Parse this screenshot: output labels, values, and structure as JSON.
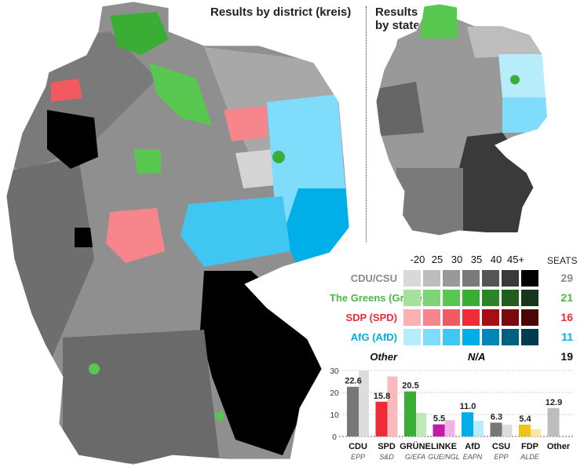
{
  "titles": {
    "district": "Results by district (kreis)",
    "state_line1": "Results",
    "state_line2": "by state"
  },
  "legend": {
    "bins": [
      "-20",
      "25",
      "30",
      "35",
      "40",
      "45+"
    ],
    "seats_header": "SEATS",
    "parties": [
      {
        "name": "CDU/CSU",
        "seats": "29",
        "color": "#8a8a8a",
        "shades": [
          "#d9d9d9",
          "#bdbdbd",
          "#999999",
          "#7a7a7a",
          "#555555",
          "#3a3a3a",
          "#000000"
        ]
      },
      {
        "name": "The Greens (Grüne)",
        "seats": "21",
        "color": "#4db848",
        "shades": [
          "#a6e29d",
          "#7fd574",
          "#58c750",
          "#3aad35",
          "#2a8525",
          "#1f5e1c",
          "#14361b"
        ]
      },
      {
        "name": "SDP (SPD)",
        "seats": "16",
        "color": "#ee2b36",
        "shades": [
          "#fab0b5",
          "#f7868c",
          "#f25a62",
          "#ee2b36",
          "#a80d12",
          "#7a0a0e",
          "#4a0507"
        ]
      },
      {
        "name": "AfG (AfD)",
        "seats": "11",
        "color": "#00aee8",
        "shades": [
          "#b7ecfb",
          "#7fdcfa",
          "#3fc7f2",
          "#00aee8",
          "#0087b5",
          "#006080",
          "#003c50"
        ]
      }
    ],
    "other": {
      "name": "Other",
      "value": "N/A",
      "seats": "19"
    }
  },
  "chart_data": {
    "type": "bar",
    "categories": [
      "CDU",
      "SPD",
      "GRÜNE",
      "LINKE",
      "AfD",
      "CSU",
      "FDP",
      "Other"
    ],
    "groups": [
      "EPP",
      "S&D",
      "G/EFA",
      "GUE/NGL",
      "EAPN",
      "EPP",
      "ALDE",
      ""
    ],
    "colors": [
      "#777777",
      "#ee2b36",
      "#3aad35",
      "#c21aa9",
      "#00aee8",
      "#777777",
      "#f1c21b",
      "#bdbdbd"
    ],
    "prev_colors": [
      "#dddddd",
      "#f9b9bd",
      "#bfe8b8",
      "#f2b0e8",
      "#b7ecfb",
      "#dddddd",
      "#fbe6a0",
      ""
    ],
    "series": [
      {
        "values": [
          22.6,
          15.8,
          20.5,
          5.5,
          11.0,
          6.3,
          5.4,
          12.9
        ]
      },
      {
        "values": [
          30.0,
          27.3,
          10.7,
          7.4,
          7.1,
          5.3,
          3.3,
          null
        ]
      }
    ],
    "data_labels": [
      "22.6",
      "15.8",
      "20.5",
      "5.5",
      "11.0",
      "6.3",
      "5.4",
      "12.9"
    ],
    "yticks": [
      "0",
      "10",
      "20",
      "30"
    ],
    "ylim": [
      0,
      32
    ],
    "grid": true
  }
}
